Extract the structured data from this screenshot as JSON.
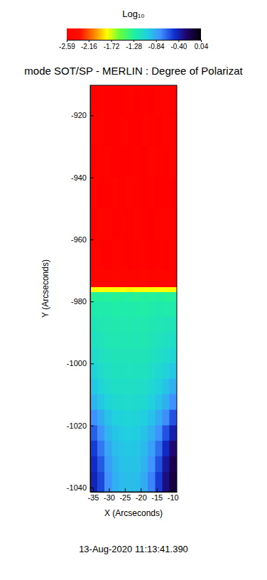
{
  "chart_data": {
    "type": "heatmap",
    "title": "mode SOT/SP - MERLIN : Degree of Polarizat",
    "xlabel": "X (Arcseconds)",
    "ylabel": "Y (Arcseconds)",
    "annotations": [
      "13-Aug-2020 11:13:41.390"
    ],
    "xlim": [
      -35.9,
      -8.7
    ],
    "ylim": [
      -1041.4,
      -910.3
    ],
    "xticks": [
      -35,
      -30,
      -25,
      -20,
      -15,
      -10
    ],
    "yticks": [
      -1040,
      -1020,
      -1000,
      -980,
      -960,
      -940,
      -920
    ],
    "log": true,
    "colorbar_title": "Log₁₀",
    "colorbar_lim": [
      -2.59,
      0.04
    ],
    "colorbar_ticks": [
      -2.59,
      -2.16,
      -1.72,
      -1.28,
      -0.84,
      {
        "value": -0.4,
        "label": "-0.40"
      },
      0.04
    ],
    "colors": [
      "#ff0000",
      "#ff1000",
      "#ff8000",
      "#ffff00",
      "#60ff40",
      "#20f0a0",
      "#20d0e0",
      "#4090ff",
      "#1030d0",
      "#200060",
      "#000000"
    ],
    "x_bins": [
      -35.9,
      -33.6,
      -31.4,
      -29.1,
      -26.8,
      -24.6,
      -22.3,
      -20.0,
      -17.8,
      -15.5,
      -13.2,
      -11.0,
      -8.7
    ],
    "y_bins": [
      -910.3,
      -920,
      -930,
      -940,
      -950,
      -960,
      -970,
      -975.5,
      -977,
      -980,
      -985,
      -990,
      -995,
      -1000,
      -1005,
      -1010,
      -1015,
      -1020,
      -1025,
      -1030,
      -1035,
      -1041.4
    ],
    "values": [
      [
        -2.55,
        -2.53,
        -2.56,
        -2.54,
        -2.55,
        -2.52,
        -2.56,
        -2.54,
        -2.55,
        -2.53,
        -2.52,
        -2.55
      ],
      [
        -2.54,
        -2.52,
        -2.55,
        -2.56,
        -2.53,
        -2.54,
        -2.55,
        -2.53,
        -2.54,
        -2.55,
        -2.53,
        -2.54
      ],
      [
        -2.56,
        -2.54,
        -2.53,
        -2.55,
        -2.54,
        -2.56,
        -2.52,
        -2.55,
        -2.53,
        -2.54,
        -2.56,
        -2.53
      ],
      [
        -2.53,
        -2.55,
        -2.54,
        -2.52,
        -2.56,
        -2.53,
        -2.54,
        -2.56,
        -2.52,
        -2.55,
        -2.54,
        -2.55
      ],
      [
        -2.55,
        -2.51,
        -2.54,
        -2.55,
        -2.53,
        -2.55,
        -2.53,
        -2.54,
        -2.55,
        -2.53,
        -2.52,
        -2.54
      ],
      [
        -2.52,
        -2.54,
        -2.55,
        -2.53,
        -2.54,
        -2.55,
        -2.54,
        -2.53,
        -2.56,
        -2.54,
        -2.55,
        -2.53
      ],
      [
        -2.5,
        -2.51,
        -2.5,
        -2.49,
        -2.5,
        -2.51,
        -2.5,
        -2.49,
        -2.51,
        -2.5,
        -2.5,
        -2.51
      ],
      [
        -1.82,
        -1.8,
        -1.81,
        -1.79,
        -1.8,
        -1.82,
        -1.8,
        -1.81,
        -1.79,
        -1.8,
        -1.81,
        -1.82
      ],
      [
        -1.3,
        -1.28,
        -1.29,
        -1.3,
        -1.28,
        -1.29,
        -1.3,
        -1.28,
        -1.29,
        -1.28,
        -1.3,
        -1.29
      ],
      [
        -1.22,
        -1.24,
        -1.23,
        -1.25,
        -1.24,
        -1.23,
        -1.24,
        -1.25,
        -1.23,
        -1.22,
        -1.24,
        -1.23
      ],
      [
        -1.18,
        -1.2,
        -1.21,
        -1.22,
        -1.21,
        -1.22,
        -1.21,
        -1.22,
        -1.2,
        -1.19,
        -1.18,
        -1.17
      ],
      [
        -1.14,
        -1.17,
        -1.19,
        -1.2,
        -1.19,
        -1.2,
        -1.19,
        -1.2,
        -1.18,
        -1.16,
        -1.14,
        -1.12
      ],
      [
        -1.1,
        -1.14,
        -1.16,
        -1.18,
        -1.17,
        -1.18,
        -1.17,
        -1.18,
        -1.15,
        -1.13,
        -1.1,
        -1.06
      ],
      [
        -1.04,
        -1.1,
        -1.13,
        -1.15,
        -1.15,
        -1.16,
        -1.15,
        -1.15,
        -1.12,
        -1.08,
        -1.04,
        -0.98
      ],
      [
        -0.98,
        -1.05,
        -1.1,
        -1.12,
        -1.12,
        -1.13,
        -1.12,
        -1.11,
        -1.08,
        -1.03,
        -0.96,
        -0.88
      ],
      [
        -0.9,
        -0.98,
        -1.05,
        -1.08,
        -1.09,
        -1.1,
        -1.09,
        -1.07,
        -1.03,
        -0.96,
        -0.88,
        -0.75
      ],
      [
        -0.75,
        -0.86,
        -0.96,
        -1.02,
        -1.04,
        -1.05,
        -1.04,
        -1.01,
        -0.95,
        -0.86,
        -0.74,
        -0.58
      ],
      [
        -0.62,
        -0.76,
        -0.9,
        -0.97,
        -1.0,
        -1.01,
        -1.0,
        -0.96,
        -0.88,
        -0.76,
        -0.58,
        -0.4
      ],
      [
        -0.52,
        -0.68,
        -0.84,
        -0.93,
        -0.97,
        -0.98,
        -0.97,
        -0.92,
        -0.82,
        -0.66,
        -0.45,
        -0.26
      ],
      [
        -0.46,
        -0.6,
        -0.8,
        -0.9,
        -0.95,
        -0.96,
        -0.95,
        -0.89,
        -0.77,
        -0.58,
        -0.36,
        -0.18
      ],
      [
        -0.42,
        -0.55,
        -0.76,
        -0.88,
        -0.93,
        -0.94,
        -0.93,
        -0.86,
        -0.72,
        -0.52,
        -0.3,
        -0.14
      ]
    ]
  }
}
